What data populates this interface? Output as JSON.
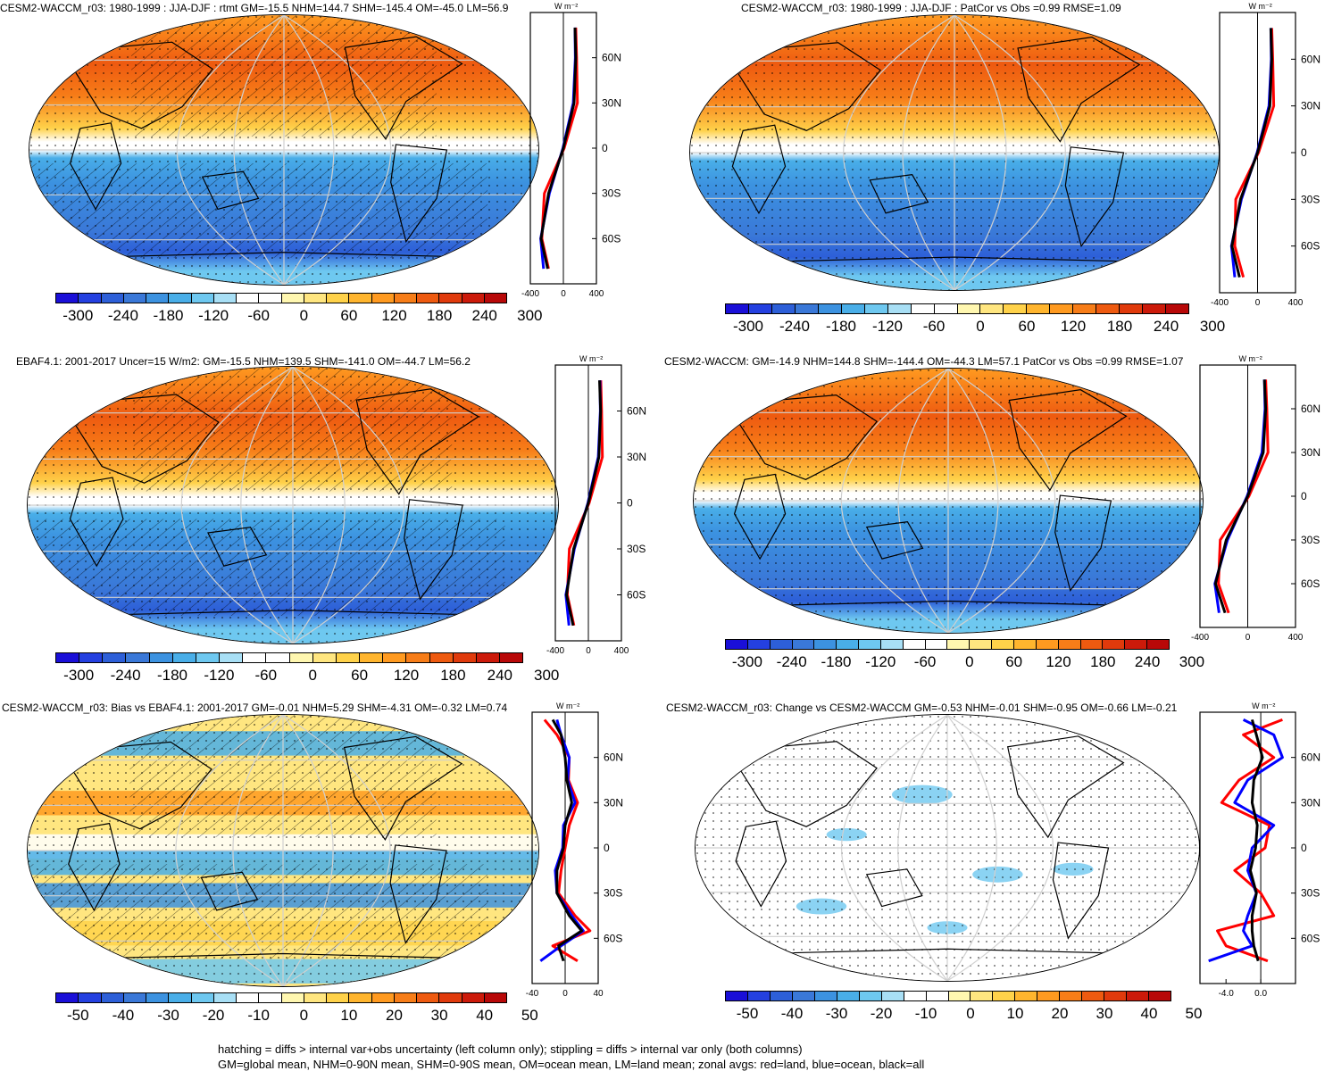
{
  "panels": [
    {
      "title": "CESM2-WACCM_r03: 1980-1999 : JJA-DJF : rtmt GM=-15.5 NHM=144.7 SHM=-145.4 OM=-45.0 LM=56.9",
      "map_type": "climatology",
      "hatching": true,
      "colorbar_labels": [
        "-300",
        "-240",
        "-180",
        "-120",
        "-60",
        "0",
        "60",
        "120",
        "180",
        "240",
        "300"
      ],
      "zonal": {
        "xticks": [
          "-400",
          "0",
          "400"
        ],
        "xmin": -400,
        "xmax": 400,
        "units": "W m-2"
      }
    },
    {
      "title": "CESM2-WACCM_r03: 1980-1999 : JJA-DJF : PatCor vs Obs =0.99 RMSE=1.09",
      "map_type": "climatology",
      "hatching": false,
      "colorbar_labels": [
        "-300",
        "-240",
        "-180",
        "-120",
        "-60",
        "0",
        "60",
        "120",
        "180",
        "240",
        "300"
      ],
      "zonal": {
        "xticks": [
          "-400",
          "0",
          "400"
        ],
        "xmin": -400,
        "xmax": 400,
        "units": "W m-2"
      }
    },
    {
      "title": "EBAF4.1: 2001-2017 Uncer=15 W/m2: GM=-15.5 NHM=139.5 SHM=-141.0 OM=-44.7 LM=56.2",
      "map_type": "climatology",
      "hatching": true,
      "colorbar_labels": [
        "-300",
        "-240",
        "-180",
        "-120",
        "-60",
        "0",
        "60",
        "120",
        "180",
        "240",
        "300"
      ],
      "zonal": {
        "xticks": [
          "-400",
          "0",
          "400"
        ],
        "xmin": -400,
        "xmax": 400,
        "units": "W m-2"
      }
    },
    {
      "title": "CESM2-WACCM: GM=-14.9 NHM=144.8 SHM=-144.4 OM=-44.3 LM=57.1 PatCor vs Obs =0.99 RMSE=1.07",
      "map_type": "climatology",
      "hatching": false,
      "colorbar_labels": [
        "-300",
        "-240",
        "-180",
        "-120",
        "-60",
        "0",
        "60",
        "120",
        "180",
        "240",
        "300"
      ],
      "zonal": {
        "xticks": [
          "-400",
          "0",
          "400"
        ],
        "xmin": -400,
        "xmax": 400,
        "units": "W m-2"
      }
    },
    {
      "title": "CESM2-WACCM_r03: Bias vs EBAF4.1: 2001-2017 GM=-0.01 NHM=5.29 SHM=-4.31 OM=-0.32 LM=0.74",
      "map_type": "bias",
      "hatching": true,
      "colorbar_labels": [
        "-50",
        "-40",
        "-30",
        "-20",
        "-10",
        "0",
        "10",
        "20",
        "30",
        "40",
        "50"
      ],
      "zonal": {
        "xticks": [
          "-40",
          "0",
          "40"
        ],
        "xmin": -40,
        "xmax": 40,
        "units": "W m-2"
      }
    },
    {
      "title": "CESM2-WACCM_r03: Change vs CESM2-WACCM GM=-0.53 NHM=-0.01 SHM=-0.95 OM=-0.66 LM=-0.21",
      "map_type": "change",
      "hatching": false,
      "colorbar_labels": [
        "-50",
        "-40",
        "-30",
        "-20",
        "-10",
        "0",
        "10",
        "20",
        "30",
        "40",
        "50"
      ],
      "zonal": {
        "xticks": [
          "-4.0",
          "0.0"
        ],
        "xmin": -7,
        "xmax": 4,
        "units": "W m-2"
      }
    }
  ],
  "lat_labels": [
    "60N",
    "30N",
    "0",
    "30S",
    "60S"
  ],
  "lat_values": [
    60,
    30,
    0,
    -30,
    -60
  ],
  "colorbar_colors": [
    "#1a0fd8",
    "#2440e0",
    "#2d5fd8",
    "#3a78d8",
    "#3c92e0",
    "#49aee8",
    "#6ec8f0",
    "#a8dff5",
    "#ffffff",
    "#ffffff",
    "#fff7b0",
    "#ffe680",
    "#ffd24a",
    "#ffb52e",
    "#ff9a20",
    "#f77d18",
    "#ee5a10",
    "#e03a0c",
    "#cc1a0a",
    "#b80808"
  ],
  "zonal_line_colors": {
    "land": "#ff0000",
    "ocean": "#0000ff",
    "all": "#000000"
  },
  "caption": [
    "hatching = diffs > internal var+obs uncertainty (left column only); stippling = diffs > internal var only (both columns)",
    "GM=global mean, NHM=0-90N mean, SHM=0-90S mean, OM=ocean mean, LM=land mean; zonal avgs: red=land, blue=ocean, black=all"
  ],
  "chart_data": [
    {
      "type": "heatmap",
      "title": "CESM2-WACCM_r03: 1980-1999 : JJA-DJF : rtmt GM=-15.5 NHM=144.7 SHM=-145.4 OM=-45.0 LM=56.9",
      "units": "W m-2",
      "zonal_mean": {
        "lat": [
          80,
          60,
          30,
          0,
          -30,
          -60,
          -80
        ],
        "all": [
          140,
          150,
          130,
          0,
          -180,
          -270,
          -190
        ],
        "land": [
          150,
          160,
          170,
          10,
          -230,
          -260,
          -180
        ],
        "ocean": [
          140,
          145,
          120,
          -5,
          -170,
          -275,
          -240
        ]
      }
    },
    {
      "type": "heatmap",
      "title": "CESM2-WACCM_r03: 1980-1999 : JJA-DJF : PatCor vs Obs =0.99 RMSE=1.09",
      "units": "W m-2",
      "zonal_mean": {
        "lat": [
          80,
          60,
          30,
          0,
          -30,
          -60,
          -80
        ],
        "all": [
          140,
          150,
          130,
          0,
          -180,
          -270,
          -190
        ],
        "land": [
          150,
          160,
          170,
          10,
          -230,
          -240,
          -150
        ],
        "ocean": [
          140,
          145,
          120,
          -5,
          -170,
          -275,
          -240
        ]
      }
    },
    {
      "type": "heatmap",
      "title": "EBAF4.1: 2001-2017 Uncer=15 W/m2: GM=-15.5 NHM=139.5 SHM=-141.0 OM=-44.7 LM=56.2",
      "units": "W m-2",
      "zonal_mean": {
        "lat": [
          80,
          60,
          30,
          0,
          -30,
          -60,
          -80
        ],
        "all": [
          135,
          148,
          128,
          0,
          -178,
          -265,
          -185
        ],
        "land": [
          150,
          160,
          170,
          10,
          -230,
          -255,
          -175
        ],
        "ocean": [
          140,
          145,
          120,
          -5,
          -170,
          -272,
          -235
        ]
      }
    },
    {
      "type": "heatmap",
      "title": "CESM2-WACCM: GM=-14.9 NHM=144.8 SHM=-144.4 OM=-44.3 LM=57.1 PatCor vs Obs =0.99 RMSE=1.07",
      "units": "W m-2",
      "zonal_mean": {
        "lat": [
          80,
          60,
          30,
          0,
          -30,
          -60,
          -80
        ],
        "all": [
          140,
          150,
          130,
          0,
          -180,
          -270,
          -190
        ],
        "land": [
          150,
          160,
          170,
          10,
          -230,
          -245,
          -160
        ],
        "ocean": [
          140,
          145,
          120,
          -5,
          -170,
          -275,
          -240
        ]
      }
    },
    {
      "type": "heatmap",
      "title": "CESM2-WACCM_r03: Bias vs EBAF4.1: 2001-2017 GM=-0.01 NHM=5.29 SHM=-4.31 OM=-0.32 LM=0.74",
      "units": "W m-2",
      "zonal_mean": {
        "lat": [
          85,
          75,
          60,
          45,
          30,
          15,
          0,
          -15,
          -30,
          -45,
          -55,
          -65,
          -75
        ],
        "all": [
          -15,
          -5,
          0,
          2,
          8,
          0,
          -2,
          -10,
          -10,
          5,
          20,
          -8,
          -2
        ],
        "land": [
          -25,
          -10,
          5,
          4,
          15,
          5,
          0,
          -5,
          -8,
          12,
          30,
          -15,
          15
        ],
        "ocean": [
          -10,
          -5,
          5,
          3,
          12,
          -2,
          -3,
          -12,
          -10,
          8,
          22,
          -5,
          -30
        ]
      }
    },
    {
      "type": "heatmap",
      "title": "CESM2-WACCM_r03: Change vs CESM2-WACCM GM=-0.53 NHM=-0.01 SHM=-0.95 OM=-0.66 LM=-0.21",
      "units": "W m-2",
      "zonal_mean": {
        "lat": [
          85,
          75,
          60,
          45,
          30,
          15,
          0,
          -15,
          -30,
          -45,
          -55,
          -65,
          -75
        ],
        "all": [
          -1.0,
          -0.5,
          0.2,
          -0.8,
          -1.0,
          -0.4,
          -0.6,
          -1.2,
          -0.5,
          -1.0,
          -1.0,
          -0.8,
          -0.3
        ],
        "land": [
          2.5,
          -2.0,
          1.5,
          -2.5,
          -4.5,
          1.0,
          0.5,
          -3.0,
          0.0,
          1.5,
          -5.0,
          -4.0,
          0.8
        ],
        "ocean": [
          -2.0,
          1.5,
          2.5,
          -1.5,
          -3.0,
          1.5,
          -1.0,
          -1.5,
          -0.5,
          -1.5,
          -2.0,
          -1.0,
          -6.0
        ]
      }
    }
  ]
}
